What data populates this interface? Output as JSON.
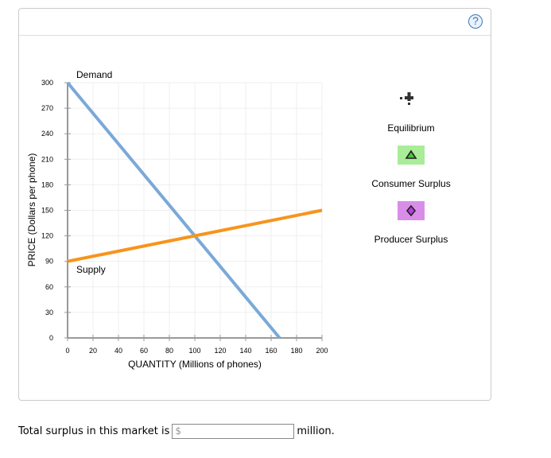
{
  "help": {
    "icon": "?"
  },
  "chart_data": {
    "type": "line",
    "title": "",
    "xlabel": "QUANTITY (Millions of phones)",
    "ylabel": "PRICE (Dollars per phone)",
    "xlim": [
      0,
      200
    ],
    "ylim": [
      0,
      300
    ],
    "xticks": [
      0,
      20,
      40,
      60,
      80,
      100,
      120,
      140,
      160,
      180,
      200
    ],
    "yticks": [
      0,
      30,
      60,
      90,
      120,
      150,
      180,
      210,
      240,
      270,
      300
    ],
    "grid": true,
    "series": [
      {
        "name": "Demand",
        "color": "#7aa9d8",
        "points": [
          [
            0,
            300
          ],
          [
            166.67,
            0
          ]
        ]
      },
      {
        "name": "Supply",
        "color": "#f7941d",
        "points": [
          [
            0,
            90
          ],
          [
            200,
            150
          ]
        ]
      }
    ],
    "equilibrium": {
      "quantity": 100,
      "price": 120
    }
  },
  "labels": {
    "demand": "Demand",
    "supply": "Supply"
  },
  "legend": {
    "items": [
      {
        "label": "Equilibrium",
        "icon": "plus-point-icon"
      },
      {
        "label": "Consumer Surplus",
        "icon": "triangle-icon",
        "color": "#a9ec9a"
      },
      {
        "label": "Producer Surplus",
        "icon": "diamond-icon",
        "color": "#d88ee8"
      }
    ]
  },
  "question": {
    "prefix": "Total surplus in this market is",
    "currency": "$",
    "value": "",
    "suffix": "million."
  }
}
